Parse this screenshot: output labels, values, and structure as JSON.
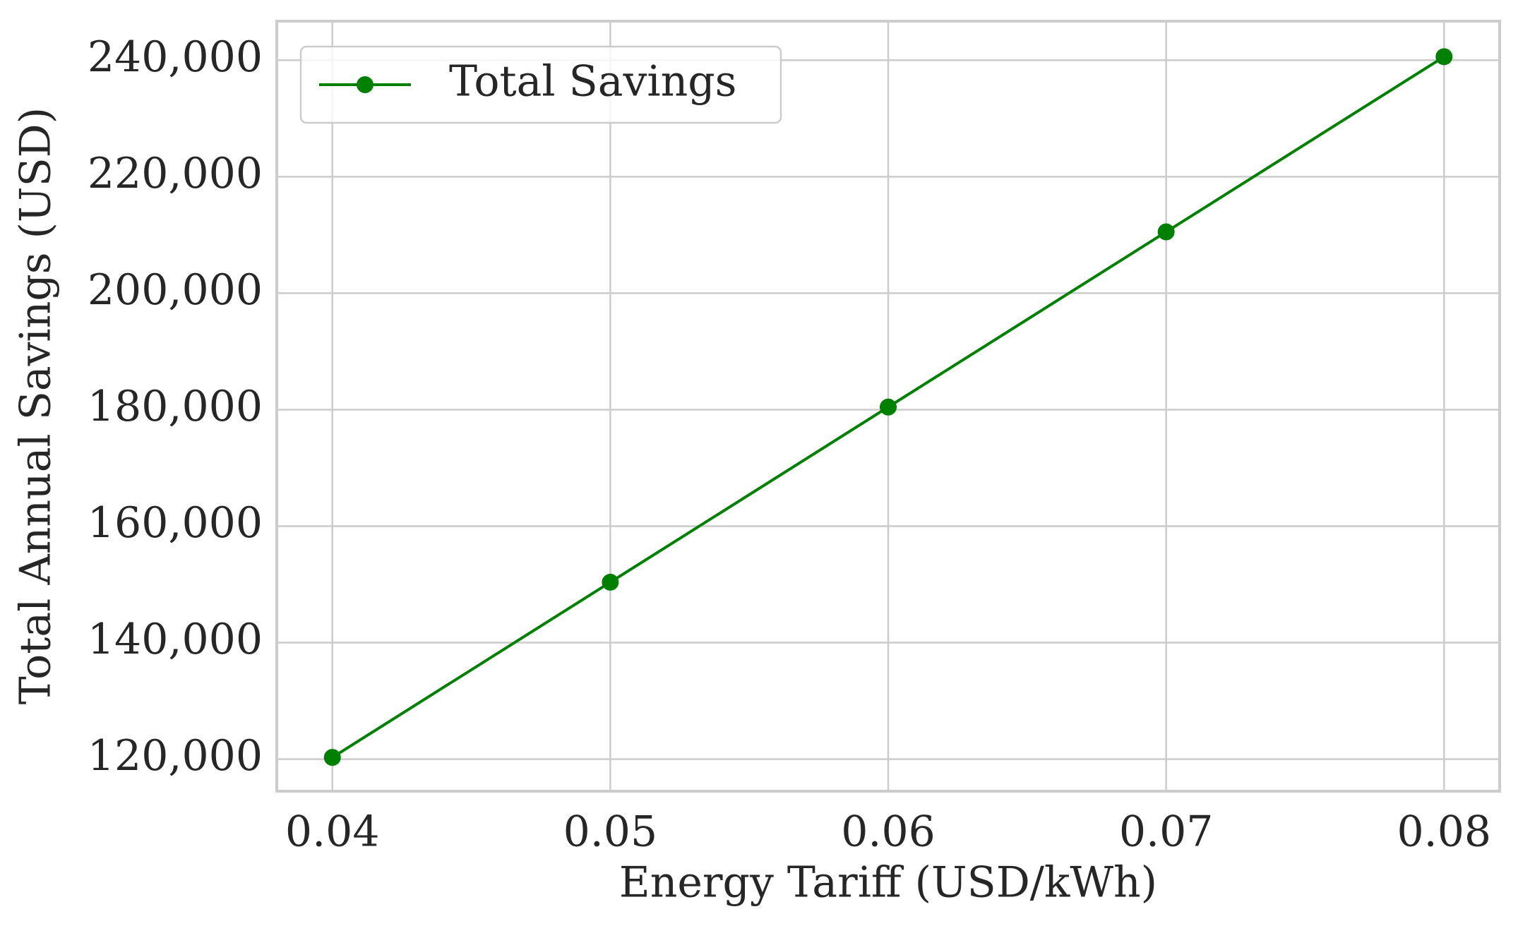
{
  "chart_data": {
    "type": "line",
    "x_label": "Energy Tariff (USD/kWh)",
    "y_label": "Total Annual Savings (USD)",
    "x": [
      0.04,
      0.05,
      0.06,
      0.07,
      0.08
    ],
    "series": [
      {
        "name": "Total Savings",
        "color": "#008000",
        "values": [
          120300,
          150375,
          180450,
          210525,
          240600
        ]
      }
    ],
    "xlim": [
      0.038,
      0.082
    ],
    "ylim": [
      114500,
      246700
    ],
    "xticks": [
      0.04,
      0.05,
      0.06,
      0.07,
      0.08
    ],
    "yticks": [
      {
        "value": 120000,
        "label": "120,000"
      },
      {
        "value": 140000,
        "label": "140,000"
      },
      {
        "value": 160000,
        "label": "160,000"
      },
      {
        "value": 180000,
        "label": "180,000"
      },
      {
        "value": 200000,
        "label": "200,000"
      },
      {
        "value": 220000,
        "label": "220,000"
      },
      {
        "value": 240000,
        "label": "240,000"
      }
    ],
    "grid": true,
    "legend": "upper left",
    "markers": true
  }
}
